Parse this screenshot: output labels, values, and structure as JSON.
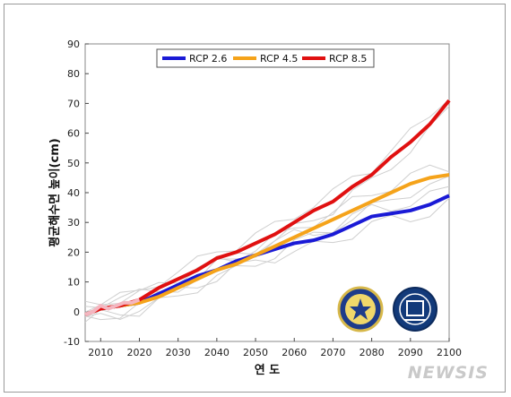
{
  "watermark": "NEWSIS",
  "chart_data": {
    "type": "line",
    "xlabel": "연 도",
    "ylabel": "평균해수면 높이(cm)",
    "xlim": [
      2006,
      2100
    ],
    "ylim": [
      -10,
      90
    ],
    "xticks": [
      2010,
      2020,
      2030,
      2040,
      2050,
      2060,
      2070,
      2080,
      2090,
      2100
    ],
    "yticks": [
      -10,
      0,
      10,
      20,
      30,
      40,
      50,
      60,
      70,
      80,
      90
    ],
    "legend_position": "top-center",
    "series": [
      {
        "name": "RCP 2.6",
        "color": "#1a1ad6",
        "x": [
          2006,
          2010,
          2015,
          2020,
          2025,
          2030,
          2035,
          2040,
          2045,
          2050,
          2055,
          2060,
          2065,
          2070,
          2075,
          2080,
          2085,
          2090,
          2095,
          2100
        ],
        "y": [
          -1,
          1,
          2,
          3,
          6,
          9,
          12,
          14,
          17,
          19,
          21,
          23,
          24,
          26,
          29,
          32,
          33,
          34,
          36,
          39
        ]
      },
      {
        "name": "RCP 4.5",
        "color": "#f5a31a",
        "x": [
          2006,
          2010,
          2015,
          2020,
          2025,
          2030,
          2035,
          2040,
          2045,
          2050,
          2055,
          2060,
          2065,
          2070,
          2075,
          2080,
          2085,
          2090,
          2095,
          2100
        ],
        "y": [
          -1,
          1,
          2,
          3,
          5,
          8,
          11,
          14,
          16,
          19,
          22,
          25,
          28,
          31,
          34,
          37,
          40,
          43,
          45,
          46
        ]
      },
      {
        "name": "RCP 8.5",
        "color": "#e01010",
        "x": [
          2006,
          2010,
          2015,
          2020,
          2025,
          2030,
          2035,
          2040,
          2045,
          2050,
          2055,
          2060,
          2065,
          2070,
          2075,
          2080,
          2085,
          2090,
          2095,
          2100
        ],
        "y": [
          -1,
          1,
          2,
          4,
          8,
          11,
          14,
          18,
          20,
          23,
          26,
          30,
          34,
          37,
          42,
          46,
          52,
          57,
          63,
          71
        ]
      }
    ]
  }
}
